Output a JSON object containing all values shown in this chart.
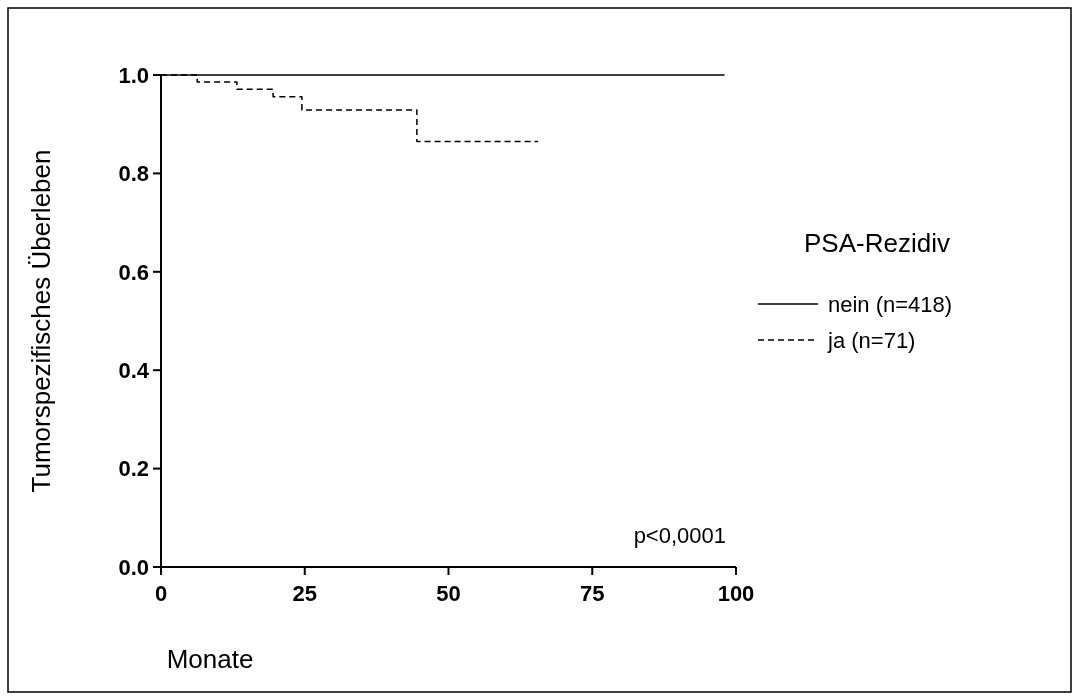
{
  "chart_data": {
    "type": "step",
    "xlabel": "Monate",
    "ylabel": "Tumorspezifisches Überleben",
    "legend_title": "PSA-Rezidiv",
    "legend": "right",
    "xlim": [
      0,
      100
    ],
    "xticks": [
      0,
      25,
      50,
      75,
      100
    ],
    "ylim": [
      0,
      1
    ],
    "yticks": [
      {
        "value": 0,
        "label": "0.0"
      },
      {
        "value": 0.2,
        "label": "0.2"
      },
      {
        "value": 0.4,
        "label": "0.4"
      },
      {
        "value": 0.6,
        "label": "0.6"
      },
      {
        "value": 0.8,
        "label": "0.8"
      },
      {
        "value": 1,
        "label": "1.0"
      }
    ],
    "grid": false,
    "series": [
      {
        "name": "nein (n=418)",
        "color": "#000000",
        "line_style": "solid",
        "x": [
          0,
          98
        ],
        "values": [
          1,
          1
        ]
      },
      {
        "name": "ja (n=71)",
        "color": "#000000",
        "line_style": "dashed",
        "x": [
          0,
          6.3,
          13.2,
          19.5,
          24.5,
          44.5,
          65.6
        ],
        "values": [
          1,
          0.986,
          0.971,
          0.956,
          0.929,
          0.865,
          0.865
        ]
      }
    ],
    "annotations": [
      "p<0,0001"
    ]
  }
}
